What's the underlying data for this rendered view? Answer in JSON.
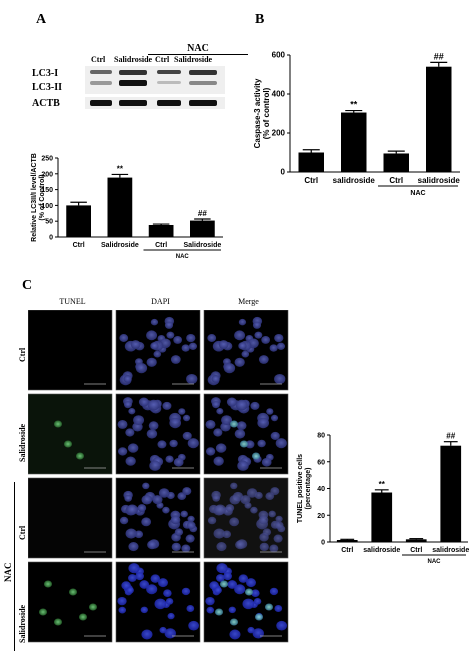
{
  "panels": {
    "a": "A",
    "b": "B",
    "c": "C"
  },
  "blot": {
    "group_label": "NAC",
    "columns": [
      "Ctrl",
      "Salidroside",
      "Ctrl",
      "Salidroside"
    ],
    "rows": [
      "LC3-I",
      "LC3-II",
      "ACTB"
    ]
  },
  "panel_c": {
    "columns": [
      "TUNEL",
      "DAPI",
      "Merge"
    ],
    "rows": [
      "Ctrl",
      "Salidroside",
      "Ctrl",
      "Salidroside"
    ],
    "group_label": "NAC"
  },
  "chart_data": [
    {
      "id": "lc3",
      "type": "bar",
      "categories": [
        "Ctrl",
        "Salidroside",
        "Ctrl",
        "Salidroside"
      ],
      "group_label": "NAC",
      "values": [
        100,
        188,
        38,
        52
      ],
      "errors": [
        10,
        10,
        3,
        5
      ],
      "significance": [
        "",
        "**",
        "",
        "##"
      ],
      "ylabel": "Relative LC3II/I level/ACTB\n(% of Control)",
      "ylim": [
        0,
        250
      ],
      "yticks": [
        0,
        50,
        100,
        150,
        200,
        250
      ]
    },
    {
      "id": "caspase",
      "type": "bar",
      "categories": [
        "Ctrl",
        "salidroside",
        "Ctrl",
        "salidroside"
      ],
      "group_label": "NAC",
      "values": [
        100,
        305,
        95,
        540
      ],
      "errors": [
        14,
        10,
        12,
        22
      ],
      "significance": [
        "",
        "**",
        "",
        "##"
      ],
      "ylabel": "Caspase-3 activity\n(% of control)",
      "ylim": [
        0,
        600
      ],
      "yticks": [
        0,
        200,
        400,
        600
      ]
    },
    {
      "id": "tunel",
      "type": "bar",
      "categories": [
        "Ctrl",
        "salidroside",
        "Ctrl",
        "salidroside"
      ],
      "group_label": "NAC",
      "values": [
        1.5,
        37,
        2,
        72
      ],
      "errors": [
        0.5,
        2,
        0.5,
        3
      ],
      "significance": [
        "",
        "**",
        "",
        "##"
      ],
      "ylabel": "TUNEL positive cells\n(percentage)",
      "ylim": [
        0,
        80
      ],
      "yticks": [
        0,
        20,
        40,
        60,
        80
      ]
    }
  ]
}
